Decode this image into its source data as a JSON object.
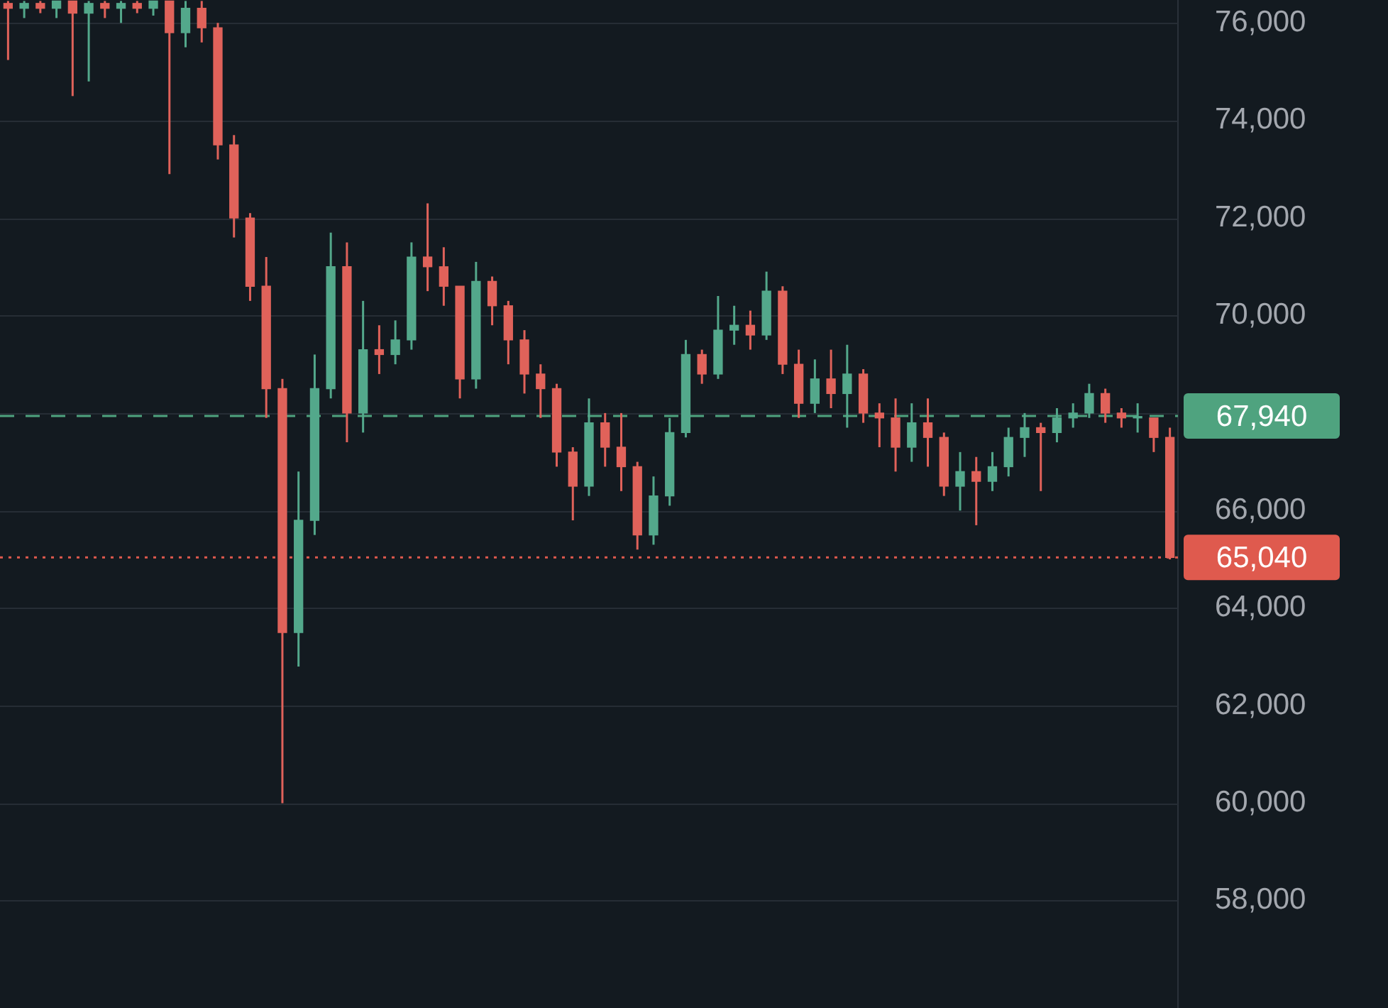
{
  "chart_data": {
    "type": "candlestick",
    "categories": [
      null,
      null,
      null,
      null,
      null,
      null,
      null,
      null,
      null,
      null,
      null,
      null,
      null,
      null,
      null,
      null,
      null,
      null,
      null,
      null,
      null,
      null,
      null,
      null,
      null,
      null,
      null,
      null,
      null,
      null,
      null,
      null,
      null,
      null,
      null,
      null,
      null,
      null,
      null,
      null,
      null,
      null,
      null,
      null,
      null,
      null,
      null,
      null,
      null,
      null,
      null,
      null,
      null,
      null,
      null,
      null,
      null,
      null,
      null,
      null,
      null,
      null,
      null,
      null,
      null,
      null,
      null,
      null,
      null,
      null,
      null,
      null,
      null
    ],
    "ohlc": [
      [
        76400,
        76450,
        75240,
        76300
      ],
      [
        76300,
        76450,
        76100,
        76400
      ],
      [
        76400,
        76450,
        76200,
        76300
      ],
      [
        76300,
        76450,
        76100,
        76450
      ],
      [
        76450,
        76450,
        74500,
        76200
      ],
      [
        76200,
        76450,
        74800,
        76400
      ],
      [
        76400,
        76450,
        76100,
        76300
      ],
      [
        76300,
        76450,
        76000,
        76400
      ],
      [
        76400,
        76450,
        76200,
        76300
      ],
      [
        76300,
        76450,
        76150,
        76450
      ],
      [
        76450,
        76450,
        72900,
        75800
      ],
      [
        75800,
        76450,
        75500,
        76300
      ],
      [
        76300,
        76450,
        75600,
        75900
      ],
      [
        75900,
        76000,
        73200,
        73500
      ],
      [
        73500,
        73700,
        71600,
        72000
      ],
      [
        72000,
        72100,
        70300,
        70600
      ],
      [
        70600,
        71200,
        67900,
        68500
      ],
      [
        68500,
        68700,
        60000,
        63500
      ],
      [
        63500,
        66800,
        62800,
        65800
      ],
      [
        65800,
        69200,
        65500,
        68500
      ],
      [
        68500,
        71700,
        68300,
        71000
      ],
      [
        71000,
        71500,
        67400,
        68000
      ],
      [
        68000,
        70300,
        67600,
        69300
      ],
      [
        69300,
        69800,
        68800,
        69200
      ],
      [
        69200,
        69900,
        69000,
        69500
      ],
      [
        69500,
        71500,
        69300,
        71200
      ],
      [
        71200,
        72300,
        70500,
        71000
      ],
      [
        71000,
        71400,
        70200,
        70600
      ],
      [
        70600,
        70600,
        68300,
        68700
      ],
      [
        68700,
        71100,
        68500,
        70700
      ],
      [
        70700,
        70800,
        69800,
        70200
      ],
      [
        70200,
        70300,
        69000,
        69500
      ],
      [
        69500,
        69700,
        68400,
        68800
      ],
      [
        68800,
        69000,
        67900,
        68500
      ],
      [
        68500,
        68600,
        66900,
        67200
      ],
      [
        67200,
        67300,
        65800,
        66500
      ],
      [
        66500,
        68300,
        66300,
        67800
      ],
      [
        67800,
        68000,
        66900,
        67300
      ],
      [
        67300,
        68000,
        66400,
        66900
      ],
      [
        66900,
        67000,
        65200,
        65500
      ],
      [
        65500,
        66700,
        65300,
        66300
      ],
      [
        66300,
        67900,
        66100,
        67600
      ],
      [
        67600,
        69500,
        67500,
        69200
      ],
      [
        69200,
        69300,
        68600,
        68800
      ],
      [
        68800,
        70400,
        68700,
        69700
      ],
      [
        69700,
        70200,
        69400,
        69800
      ],
      [
        69800,
        70100,
        69300,
        69600
      ],
      [
        69600,
        70900,
        69500,
        70500
      ],
      [
        70500,
        70600,
        68800,
        69000
      ],
      [
        69000,
        69300,
        67900,
        68200
      ],
      [
        68200,
        69100,
        68000,
        68700
      ],
      [
        68700,
        69300,
        68100,
        68400
      ],
      [
        68400,
        69400,
        67700,
        68800
      ],
      [
        68800,
        68900,
        67800,
        68000
      ],
      [
        68000,
        68200,
        67300,
        67900
      ],
      [
        67900,
        68300,
        66800,
        67300
      ],
      [
        67300,
        68200,
        67000,
        67800
      ],
      [
        67800,
        68300,
        66900,
        67500
      ],
      [
        67500,
        67600,
        66300,
        66500
      ],
      [
        66500,
        67200,
        66000,
        66800
      ],
      [
        66800,
        67100,
        65700,
        66600
      ],
      [
        66600,
        67200,
        66400,
        66900
      ],
      [
        66900,
        67700,
        66700,
        67500
      ],
      [
        67500,
        68000,
        67100,
        67700
      ],
      [
        67700,
        67800,
        66400,
        67600
      ],
      [
        67600,
        68100,
        67400,
        67900
      ],
      [
        67900,
        68200,
        67700,
        68000
      ],
      [
        68000,
        68600,
        67900,
        68400
      ],
      [
        68400,
        68500,
        67800,
        68000
      ],
      [
        68000,
        68100,
        67700,
        67900
      ],
      [
        67900,
        68200,
        67600,
        67900
      ],
      [
        67900,
        67900,
        67200,
        67500
      ],
      [
        67500,
        67700,
        65000,
        65040
      ]
    ],
    "colors": [
      "#e0625a",
      "#53a88b",
      "#e0625a",
      "#53a88b",
      "#e0625a",
      "#53a88b",
      "#e0625a",
      "#53a88b",
      "#e0625a",
      "#53a88b",
      "#e0625a",
      "#53a88b",
      "#e0625a",
      "#e0625a",
      "#e0625a",
      "#e0625a",
      "#e0625a",
      "#e0625a",
      "#53a88b",
      "#53a88b",
      "#53a88b",
      "#e0625a",
      "#53a88b",
      "#e0625a",
      "#53a88b",
      "#53a88b",
      "#e0625a",
      "#e0625a",
      "#e0625a",
      "#53a88b",
      "#e0625a",
      "#e0625a",
      "#e0625a",
      "#e0625a",
      "#e0625a",
      "#e0625a",
      "#53a88b",
      "#e0625a",
      "#e0625a",
      "#e0625a",
      "#53a88b",
      "#53a88b",
      "#53a88b",
      "#e0625a",
      "#53a88b",
      "#53a88b",
      "#e0625a",
      "#53a88b",
      "#e0625a",
      "#e0625a",
      "#53a88b",
      "#e0625a",
      "#53a88b",
      "#e0625a",
      "#e0625a",
      "#e0625a",
      "#53a88b",
      "#e0625a",
      "#e0625a",
      "#53a88b",
      "#e0625a",
      "#53a88b",
      "#53a88b",
      "#53a88b",
      "#e0625a",
      "#53a88b",
      "#53a88b",
      "#53a88b",
      "#e0625a",
      "#e0625a",
      "#53a88b",
      "#e0625a",
      "#e0625a"
    ],
    "ylim": [
      55800,
      76470
    ],
    "yticks": [
      {
        "value": 58000,
        "label": "58,000"
      },
      {
        "value": 60000,
        "label": "60,000"
      },
      {
        "value": 62000,
        "label": "62,000"
      },
      {
        "value": 64000,
        "label": "64,000"
      },
      {
        "value": 66000,
        "label": "66,000"
      },
      {
        "value": 68000,
        "label": null
      },
      {
        "value": 70000,
        "label": "70,000"
      },
      {
        "value": 72000,
        "label": "72,000"
      },
      {
        "value": 74000,
        "label": "74,000"
      },
      {
        "value": 76000,
        "label": "76,000"
      }
    ],
    "tick_labels": "y",
    "grid": "y",
    "legend": false,
    "ref_lines": [
      {
        "axis": "y",
        "value": 67940,
        "label": "67,940",
        "color": "#4fa37f",
        "line_style": "dashed"
      },
      {
        "axis": "y",
        "value": 65040,
        "label": "65,040",
        "color": "#df5a4e",
        "line_style": "dotted"
      }
    ]
  }
}
